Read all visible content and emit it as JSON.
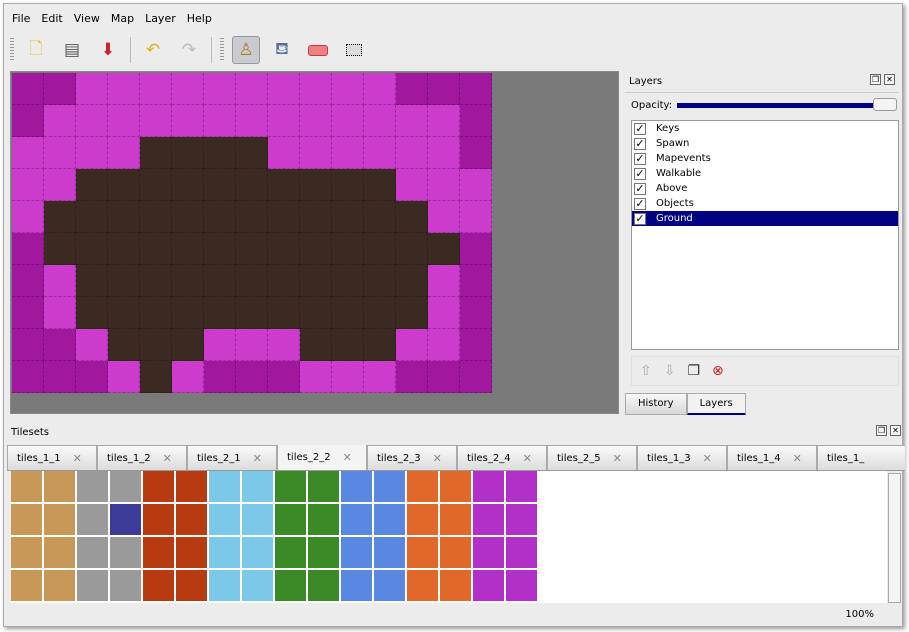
{
  "menu": [
    "File",
    "Edit",
    "View",
    "Map",
    "Layer",
    "Help"
  ],
  "toolbar": {
    "icons": [
      "new-icon",
      "open-icon",
      "save-icon",
      "undo-icon",
      "redo-icon",
      "stamp-brush-icon",
      "bucket-fill-icon",
      "eraser-icon",
      "rect-select-icon"
    ],
    "active": "stamp-brush-icon"
  },
  "map": {
    "legend": {
      "D": "#a0189e",
      "P": "#cc3ccc",
      "B": "#3b2a22"
    },
    "rows": [
      "DDPPPPPPPPPPDDD",
      "DPPPPPPPPPPPPPD",
      "PPPPBBBBPPPPPPD",
      "PPBBBBBBBBBBPPP",
      "PBBBBBBBBBBBBPP",
      "DBBBBBBBBBBBBBD",
      "DPBBBBBBBBBBBPD",
      "DPBBBBBBBBBBBPD",
      "DDPBBBPPPBBBPPD",
      "DDDPBPDDDPPPDDD"
    ]
  },
  "layers": {
    "title": "Layers",
    "opacity_label": "Opacity:",
    "opacity": 1.0,
    "items": [
      {
        "label": "Keys",
        "visible": true
      },
      {
        "label": "Spawn",
        "visible": true
      },
      {
        "label": "Mapevents",
        "visible": true
      },
      {
        "label": "Walkable",
        "visible": true
      },
      {
        "label": "Above",
        "visible": true
      },
      {
        "label": "Objects",
        "visible": true
      },
      {
        "label": "Ground",
        "visible": true,
        "selected": true
      }
    ],
    "tabs": [
      "History",
      "Layers"
    ],
    "active_tab": "Layers"
  },
  "tilesets": {
    "title": "Tilesets",
    "tabs": [
      "tiles_1_1",
      "tiles_1_2",
      "tiles_2_1",
      "tiles_2_2",
      "tiles_2_3",
      "tiles_2_4",
      "tiles_2_5",
      "tiles_1_3",
      "tiles_1_4",
      "tiles_1_"
    ],
    "active": "tiles_2_2",
    "column_colors": [
      "#c89858",
      "#c89858",
      "#9a9a9a",
      "#9a9a9a",
      "#b83a10",
      "#b83a10",
      "#7cc8e8",
      "#7cc8e8",
      "#3a8a28",
      "#3a8a28",
      "#5a88e0",
      "#5a88e0",
      "#e06828",
      "#e06828",
      "#b030c8",
      "#b030c8"
    ]
  },
  "status": {
    "zoom": "100%"
  }
}
